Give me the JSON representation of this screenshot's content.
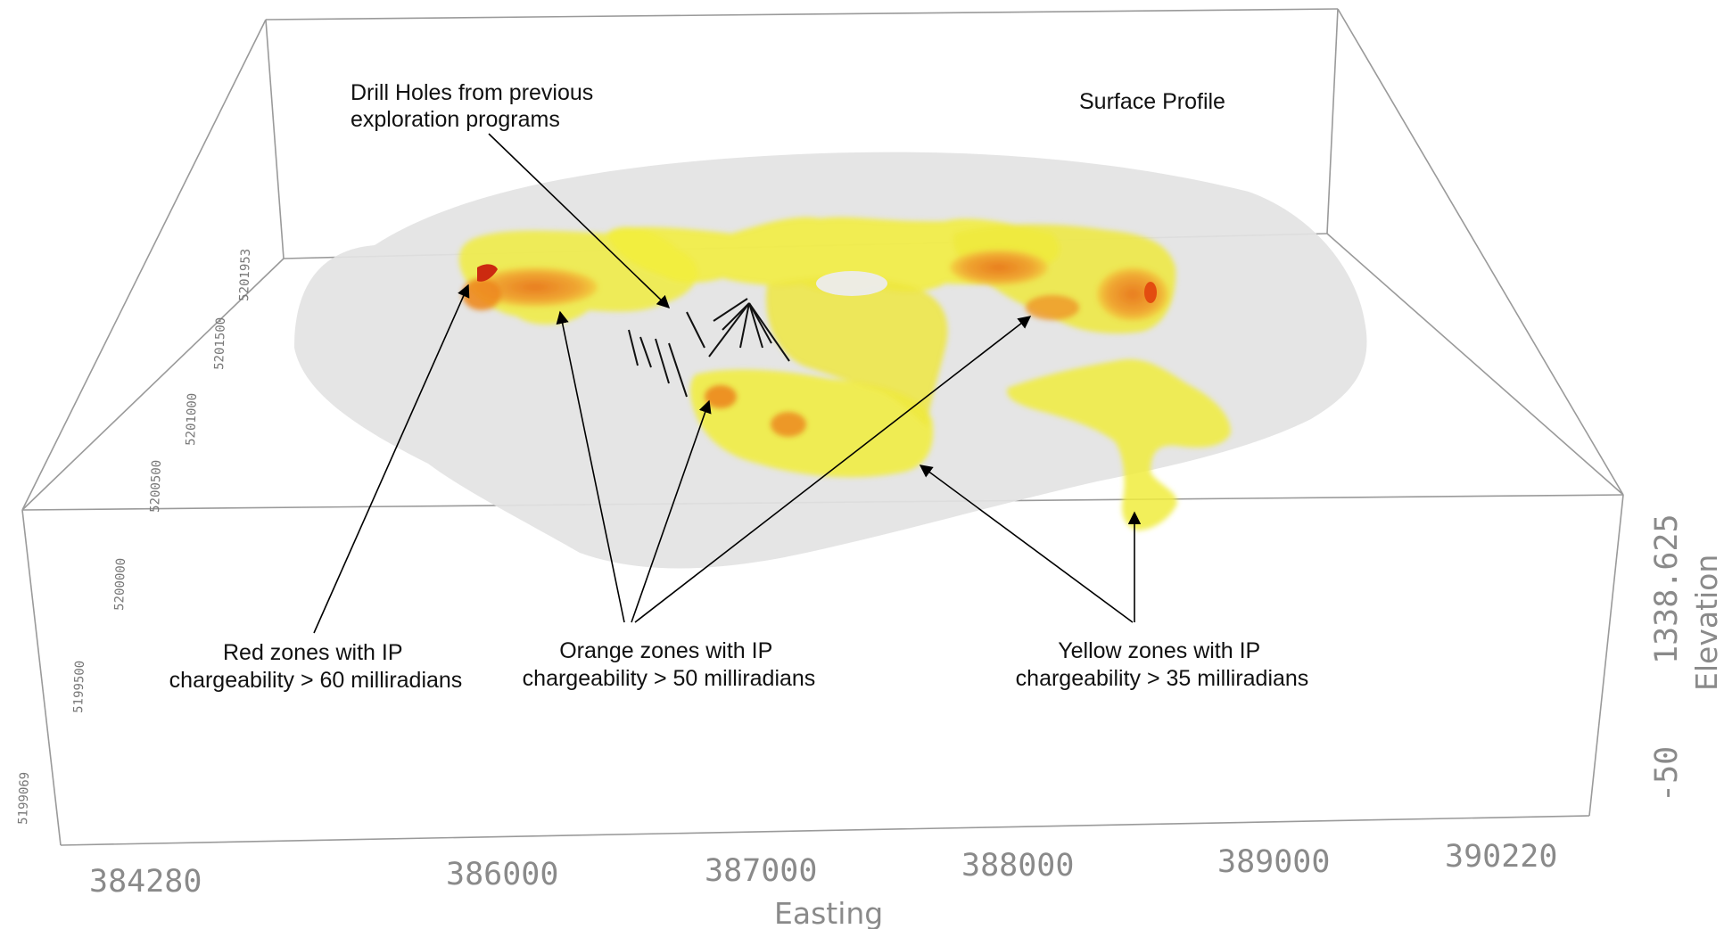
{
  "annotations": {
    "drill_holes": [
      "Drill Holes from previous",
      "exploration programs"
    ],
    "surface_profile": "Surface Profile",
    "red_zones": [
      "Red zones with IP",
      "chargeability > 60 milliradians"
    ],
    "orange_zones": [
      "Orange zones with IP",
      "chargeability > 50 milliradians"
    ],
    "yellow_zones": [
      "Yellow zones with IP",
      "chargeability > 35 milliradians"
    ]
  },
  "axes": {
    "easting": {
      "title": "Easting",
      "ticks": [
        "384280",
        "386000",
        "387000",
        "388000",
        "389000",
        "390220"
      ]
    },
    "elevation": {
      "title": "Elevation",
      "ticks": [
        "1338.625",
        "-50"
      ]
    },
    "northing": {
      "ticks": [
        "5199069",
        "5199500",
        "5200000",
        "5200500",
        "5201000",
        "5201500",
        "5201953"
      ]
    }
  },
  "colors": {
    "red_zone": "#cc2a10",
    "orange_zone": "#f08a1e",
    "yellow_zone": "#f2ee3a",
    "surface_profile": "#e6e6e6",
    "bounding_box": "#9a9a9a"
  }
}
